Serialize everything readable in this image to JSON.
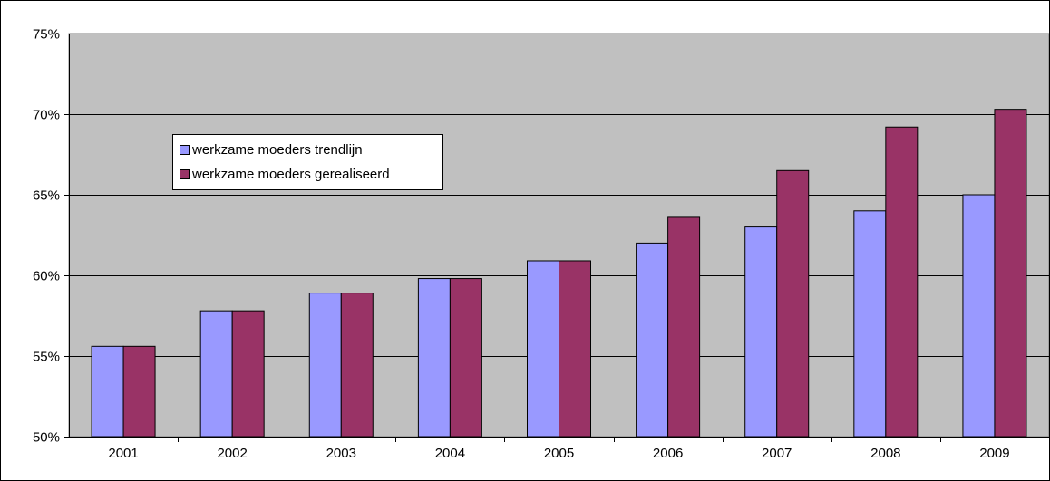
{
  "chart_data": {
    "type": "bar",
    "title": "",
    "xlabel": "",
    "ylabel": "",
    "categories": [
      "2001",
      "2002",
      "2003",
      "2004",
      "2005",
      "2006",
      "2007",
      "2008",
      "2009"
    ],
    "series": [
      {
        "name": "werkzame moeders trendlijn",
        "color": "#9999ff",
        "values": [
          55.6,
          57.8,
          58.9,
          59.8,
          60.9,
          62.0,
          63.0,
          64.0,
          65.0
        ]
      },
      {
        "name": "werkzame moeders gerealiseerd",
        "color": "#993366",
        "values": [
          55.6,
          57.8,
          58.9,
          59.8,
          60.9,
          63.6,
          66.5,
          69.2,
          70.3
        ]
      }
    ],
    "ylim": [
      50,
      75
    ],
    "yticks": [
      50,
      55,
      60,
      65,
      70,
      75
    ],
    "ytick_labels": [
      "50%",
      "55%",
      "60%",
      "65%",
      "70%",
      "75%"
    ],
    "grid": true,
    "plot_background": "#c0c0c0",
    "legend_position": "upper-left, inside plot"
  }
}
